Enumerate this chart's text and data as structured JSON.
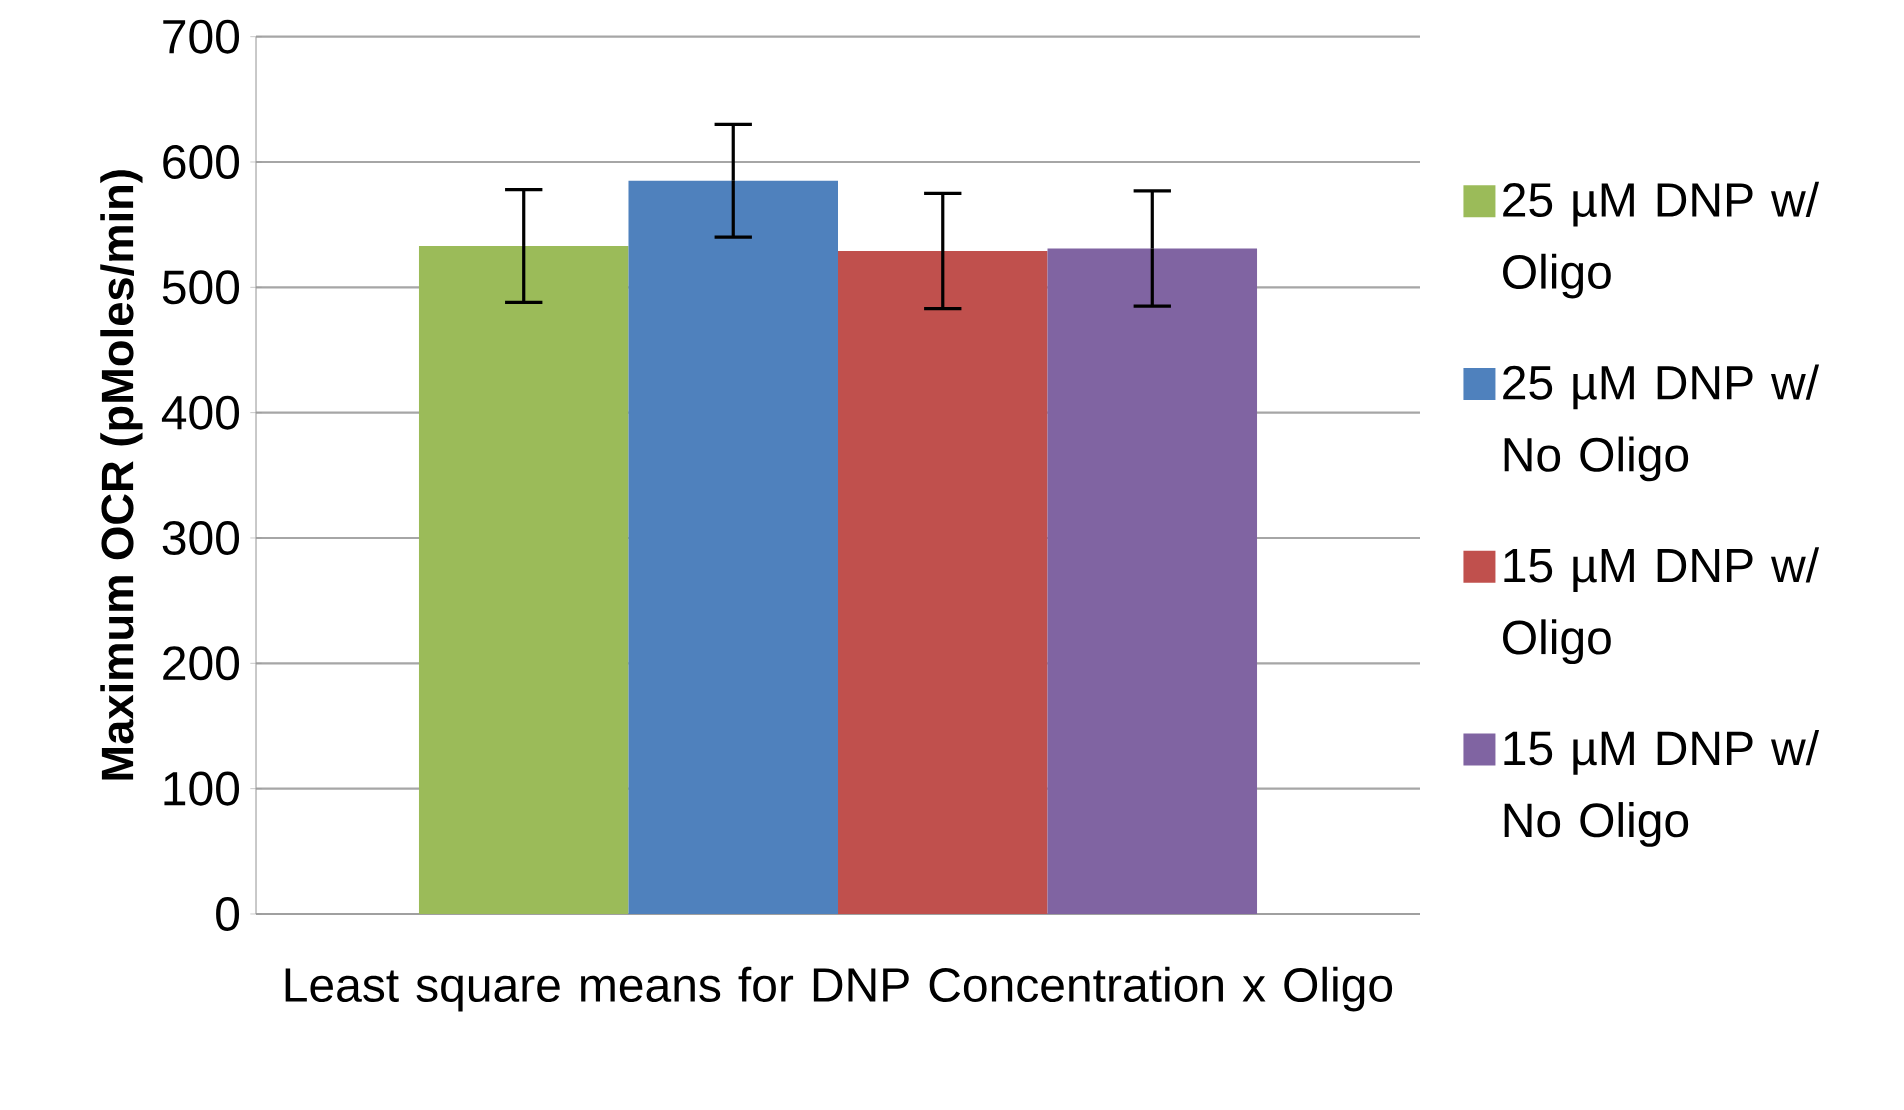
{
  "chart_data": {
    "type": "bar",
    "ylabel": "Maximum OCR (pMoles/min)",
    "categories": [
      "Least square means for DNP Concentration x Oligo"
    ],
    "series": [
      {
        "name": "25 µM DNP w/ Oligo",
        "color": "#9bbb59",
        "values": [
          533
        ],
        "errors": [
          45
        ]
      },
      {
        "name": "25 µM DNP w/ No Oligo",
        "color": "#4f81bd",
        "values": [
          585
        ],
        "errors": [
          45
        ]
      },
      {
        "name": "15 µM DNP w/ Oligo",
        "color": "#c0504d",
        "values": [
          529
        ],
        "errors": [
          46
        ]
      },
      {
        "name": "15 µM DNP w/ No Oligo",
        "color": "#8064a2",
        "values": [
          531
        ],
        "errors": [
          46
        ]
      }
    ],
    "ylim": [
      0,
      700
    ],
    "yticks": [
      0,
      100,
      200,
      300,
      400,
      500,
      600,
      700
    ],
    "grid": "y",
    "legend": "right"
  }
}
